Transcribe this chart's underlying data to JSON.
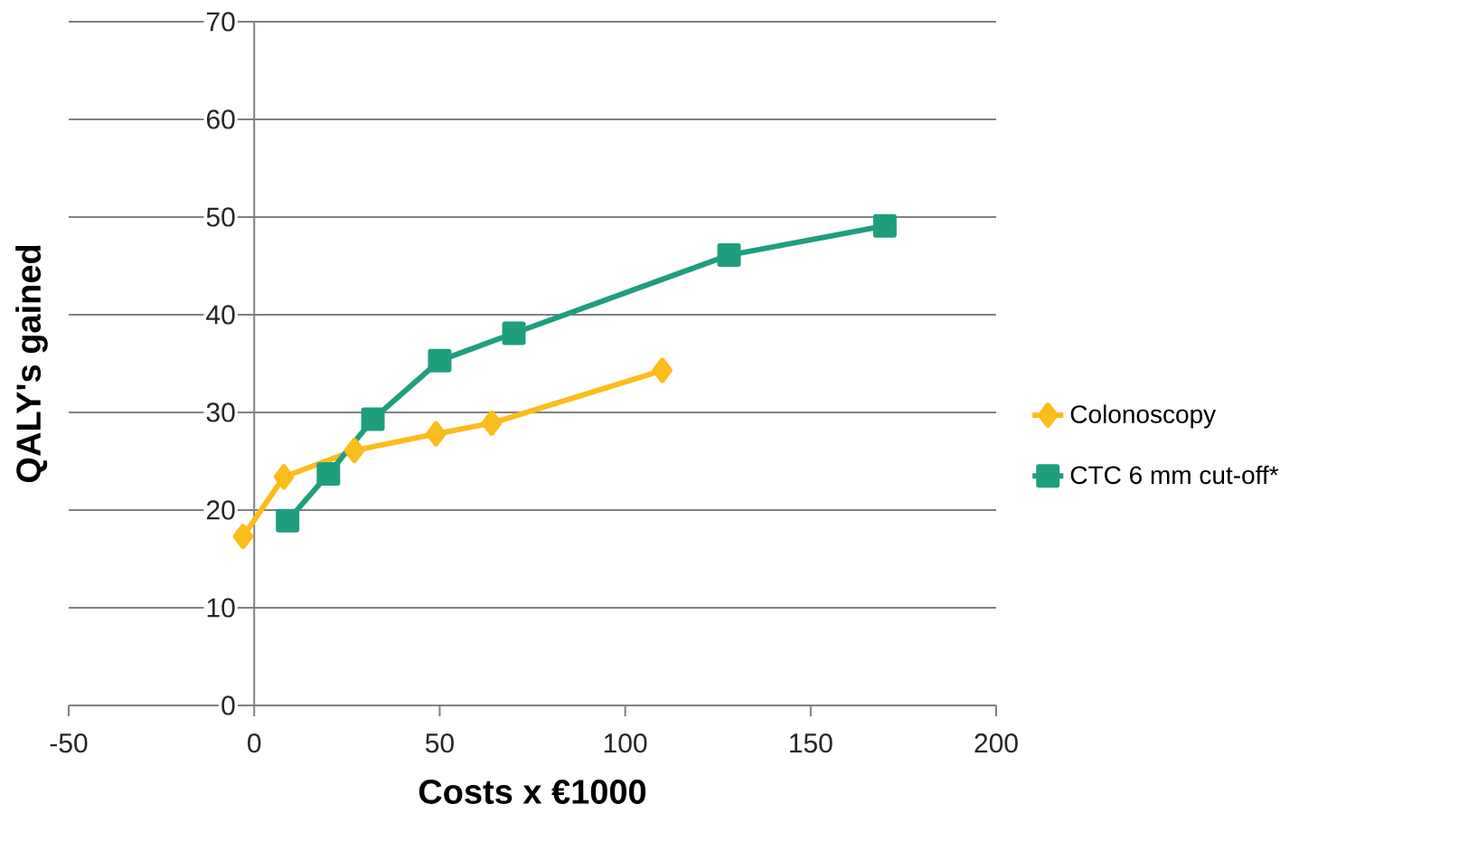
{
  "chart_data": {
    "type": "line",
    "xlabel": "Costs x €1000",
    "ylabel": "QALY's gained",
    "xlim": [
      -50,
      200
    ],
    "xticks": [
      -50,
      0,
      50,
      100,
      150,
      200
    ],
    "ylim": [
      0,
      70
    ],
    "yticks": [
      0,
      10,
      20,
      30,
      40,
      50,
      60,
      70
    ],
    "grid": "y",
    "legend": "right",
    "line_style": "solid",
    "series": [
      {
        "name": "Colonoscopy",
        "color": "#fbbd1c",
        "marker": "diamond",
        "x": [
          -3,
          8,
          27,
          49,
          64,
          110
        ],
        "values": [
          17.3,
          23.4,
          26.1,
          27.8,
          28.9,
          34.3
        ]
      },
      {
        "name": "CTC 6 mm cut-off*",
        "color": "#1f9e7e",
        "marker": "square",
        "x": [
          9,
          20,
          32,
          50,
          70,
          128,
          170
        ],
        "values": [
          18.9,
          23.7,
          29.3,
          35.3,
          38.1,
          46.1,
          49.1
        ]
      }
    ]
  }
}
